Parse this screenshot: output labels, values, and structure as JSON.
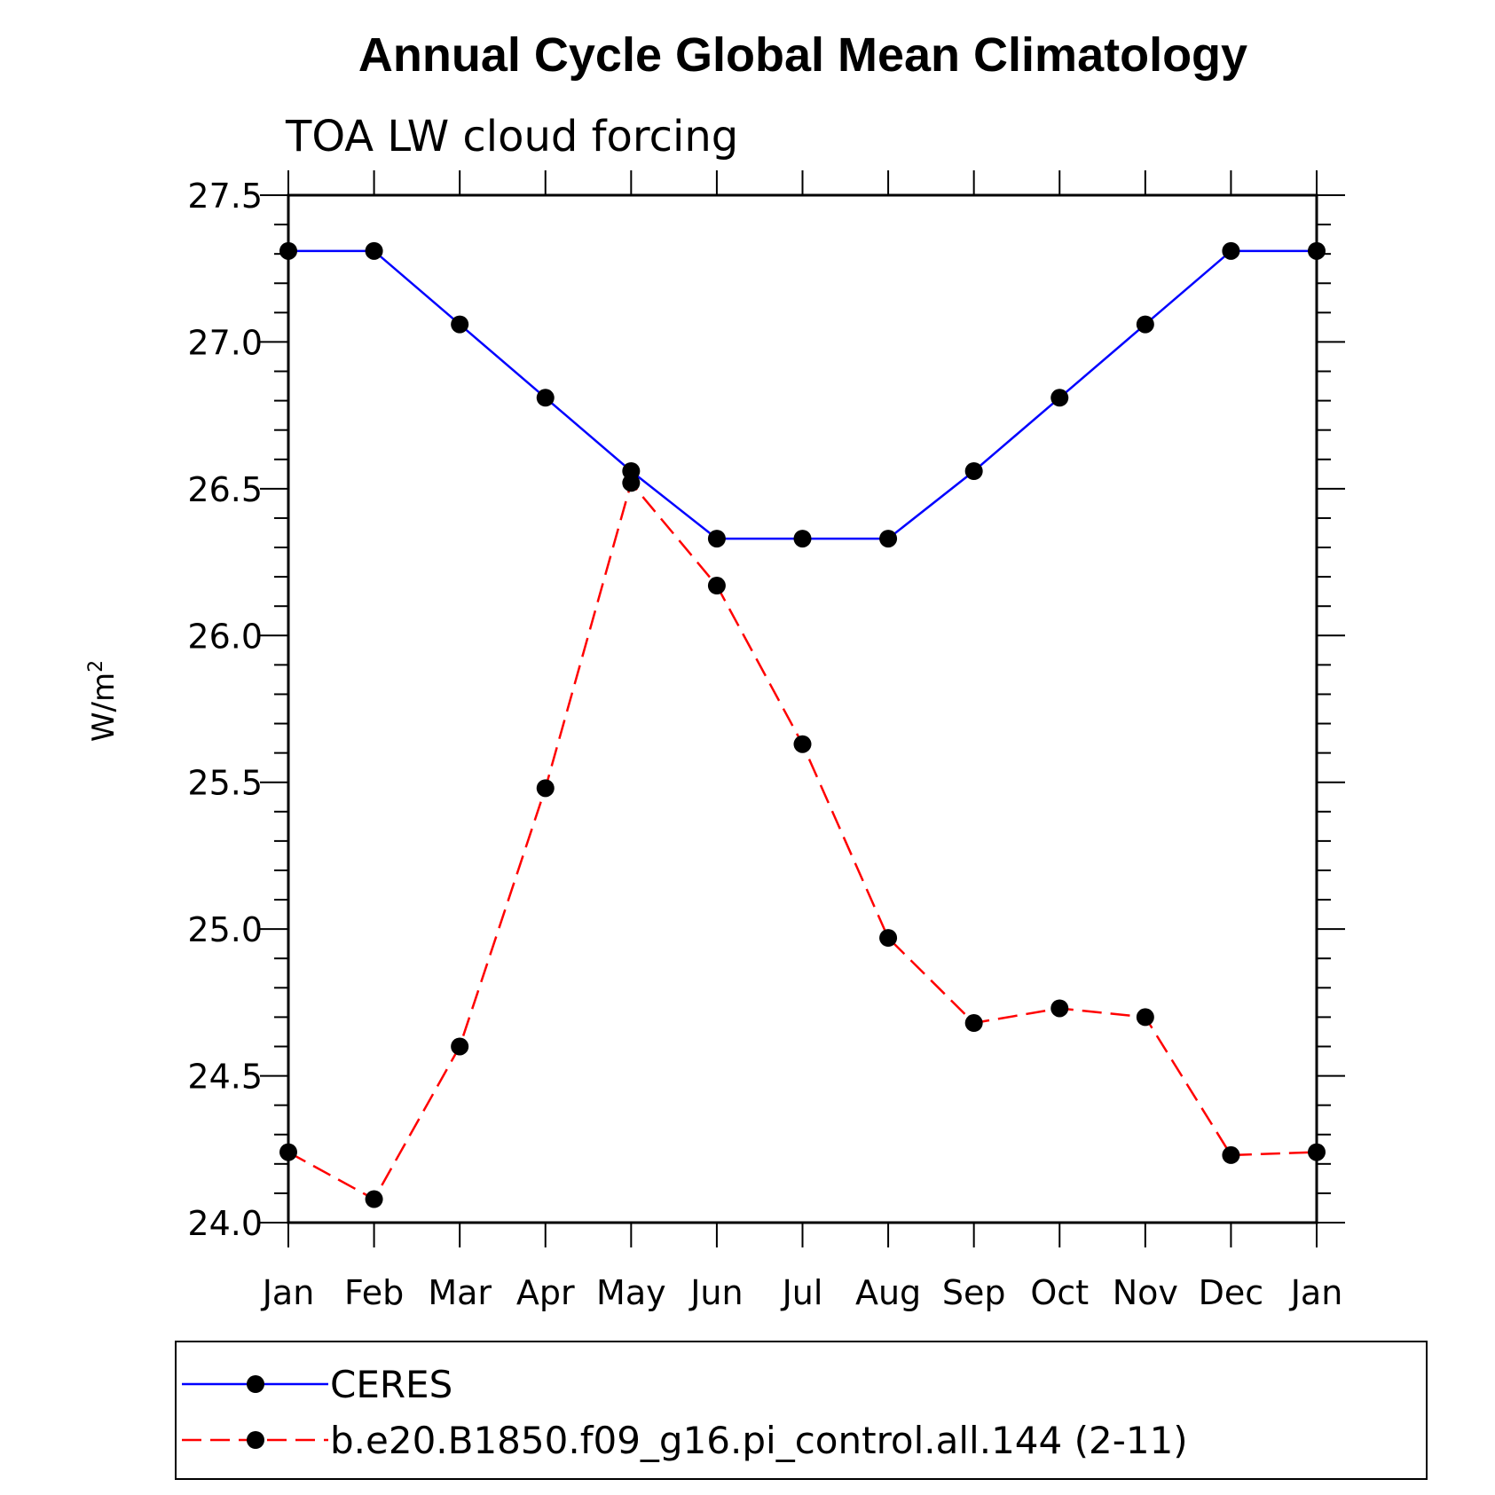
{
  "chart_data": {
    "type": "line",
    "title": "Annual Cycle Global Mean Climatology",
    "subtitle": "TOA LW cloud forcing",
    "ylabel": "W/m",
    "ylabel_superscript": "2",
    "categories": [
      "Jan",
      "Feb",
      "Mar",
      "Apr",
      "May",
      "Jun",
      "Jul",
      "Aug",
      "Sep",
      "Oct",
      "Nov",
      "Dec",
      "Jan"
    ],
    "yticks": [
      "24.0",
      "24.5",
      "25.0",
      "25.5",
      "26.0",
      "26.5",
      "27.0",
      "27.5"
    ],
    "ylim": [
      24.0,
      27.5
    ],
    "grid": false,
    "legend_position": "bottom",
    "series": [
      {
        "name": "CERES",
        "color": "#0000ff",
        "dash": "solid",
        "marker": "filled-circle",
        "values": [
          27.31,
          27.31,
          27.06,
          26.81,
          26.56,
          26.33,
          26.33,
          26.33,
          26.56,
          26.81,
          27.06,
          27.31,
          27.31
        ]
      },
      {
        "name": "b.e20.B1850.f09_g16.pi_control.all.144 (2-11)",
        "color": "#ff0000",
        "dash": "dashed",
        "marker": "filled-circle",
        "values": [
          24.24,
          24.08,
          24.6,
          25.48,
          26.52,
          26.17,
          25.63,
          24.97,
          24.68,
          24.73,
          24.7,
          24.23,
          24.24
        ]
      }
    ]
  }
}
